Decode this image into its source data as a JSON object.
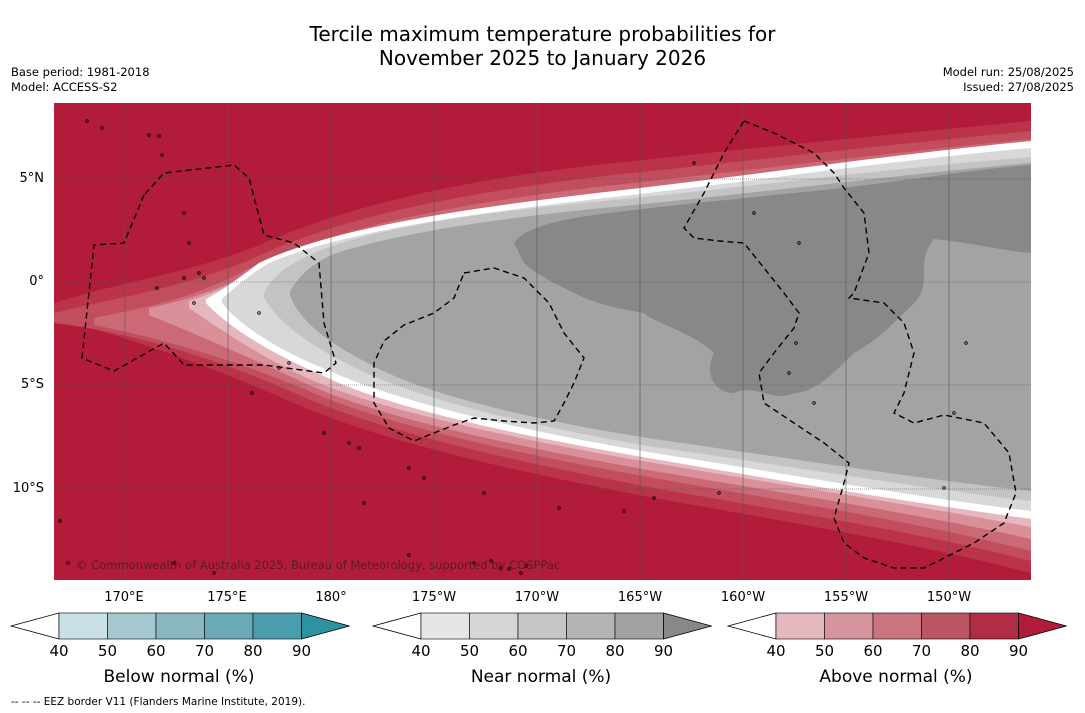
{
  "title_line1": "Tercile maximum temperature probabilities for",
  "title_line2": "November 2025 to January 2026",
  "base_period": "Base period: 1981-2018",
  "model": "Model: ACCESS-S2",
  "model_run": "Model run: 25/08/2025",
  "issued": "Issued: 27/08/2025",
  "copyright": "© Commonwealth of Australia 2025, Bureau of Meteorology, supported by COSPPac",
  "footnote": "--  --  -- EEZ border V11 (Flanders Marine Institute, 2019).",
  "lat_labels": [
    "5°N",
    "0°",
    "5°S",
    "10°S"
  ],
  "lon_labels": [
    "170°E",
    "175°E",
    "180°",
    "175°W",
    "170°W",
    "165°W",
    "160°W",
    "155°W",
    "150°W"
  ],
  "colorbars": [
    {
      "title": "Below normal (%)",
      "ticks": [
        "40",
        "50",
        "60",
        "70",
        "80",
        "90"
      ],
      "colors": [
        "#ffffff",
        "#c8e0e6",
        "#a5c8ce",
        "#88b7c1",
        "#6aaab6",
        "#4a9eac",
        "#2e92a0"
      ]
    },
    {
      "title": "Near normal (%)",
      "ticks": [
        "40",
        "50",
        "60",
        "70",
        "80",
        "90"
      ],
      "colors": [
        "#ffffff",
        "#e6e6e6",
        "#d6d6d6",
        "#c6c6c6",
        "#b4b4b4",
        "#a2a2a2",
        "#888888"
      ]
    },
    {
      "title": "Above normal (%)",
      "ticks": [
        "40",
        "50",
        "60",
        "70",
        "80",
        "90"
      ],
      "colors": [
        "#ffffff",
        "#e3b8bf",
        "#d6959e",
        "#c9747f",
        "#bb5562",
        "#b02d45",
        "#b21c3a"
      ]
    }
  ],
  "map_colors": {
    "above_90": "#b21c3a",
    "above_80": "#bb3348",
    "above_70": "#c24d5c",
    "above_60": "#cb6a76",
    "above_50": "#d99099",
    "above_40": "#e6b7be",
    "near_40": "#ffffff",
    "near_50": "#d8d8d8",
    "near_60": "#c3c3c3",
    "near_70": "#a3a3a3",
    "near_80": "#888888"
  }
}
